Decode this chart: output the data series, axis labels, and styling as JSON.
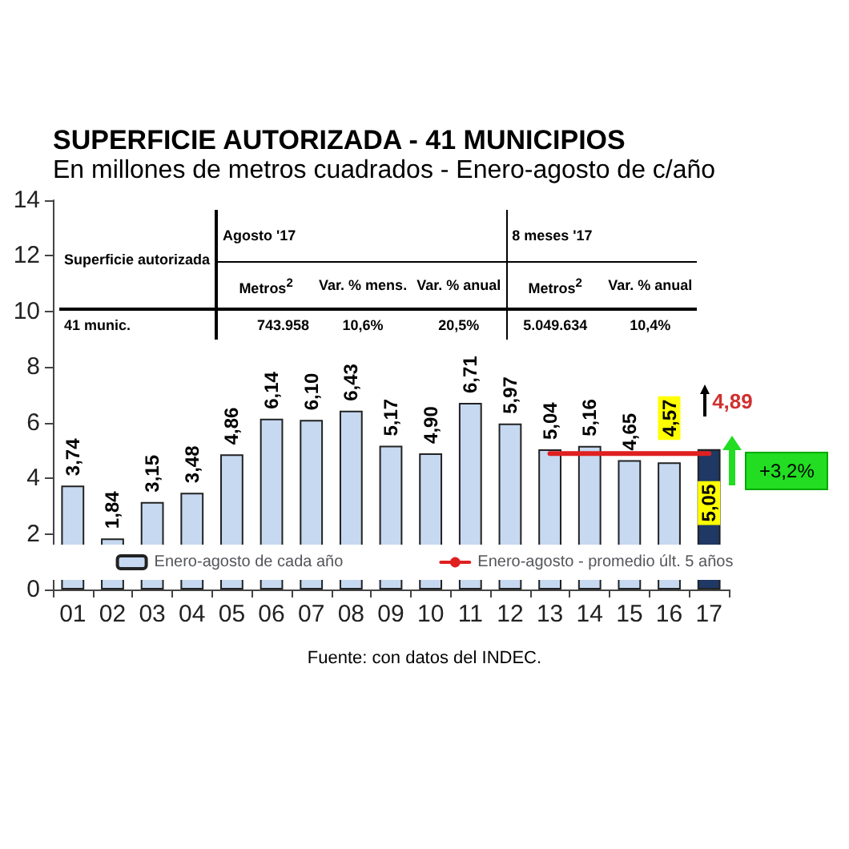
{
  "chart_data": {
    "type": "bar",
    "title": "SUPERFICIE AUTORIZADA - 41 MUNICIPIOS",
    "subtitle": "En millones de metros cuadrados - Enero-agosto de c/año",
    "categories": [
      "01",
      "02",
      "03",
      "04",
      "05",
      "06",
      "07",
      "08",
      "09",
      "10",
      "11",
      "12",
      "13",
      "14",
      "15",
      "16",
      "17"
    ],
    "series": [
      {
        "name": "Enero-agosto de cada año",
        "colors": [
          "#c6d9f1",
          "#c6d9f1",
          "#c6d9f1",
          "#c6d9f1",
          "#c6d9f1",
          "#c6d9f1",
          "#c6d9f1",
          "#c6d9f1",
          "#c6d9f1",
          "#c6d9f1",
          "#c6d9f1",
          "#c6d9f1",
          "#c6d9f1",
          "#c6d9f1",
          "#c6d9f1",
          "#c6d9f1",
          "#1f3864"
        ],
        "values": [
          3.74,
          1.84,
          3.15,
          3.48,
          4.86,
          6.14,
          6.1,
          6.43,
          5.17,
          4.9,
          6.71,
          5.97,
          5.04,
          5.16,
          4.65,
          4.57,
          5.05
        ],
        "value_labels": [
          "3,74",
          "1,84",
          "3,15",
          "3,48",
          "4,86",
          "6,14",
          "6,10",
          "6,43",
          "5,17",
          "4,90",
          "6,71",
          "5,97",
          "5,04",
          "5,16",
          "4,65",
          "4,57",
          "5,05"
        ]
      },
      {
        "name": "Enero-agosto - promedio últ. 5 años",
        "type": "line",
        "color": "#e02020",
        "values": [
          null,
          null,
          null,
          null,
          null,
          null,
          null,
          null,
          null,
          null,
          null,
          null,
          4.89,
          4.89,
          4.89,
          4.89,
          4.89
        ]
      }
    ],
    "ylim": [
      0,
      14
    ],
    "yticks": [
      0,
      2,
      4,
      6,
      8,
      10,
      12,
      14
    ],
    "grid": false,
    "legend": "bottom",
    "marker": "none",
    "annotations": [
      "Fuente: con datos del INDEC.",
      "+3,2%",
      {
        "text": "4,89",
        "x": "17",
        "y": 4.89
      },
      "Superficie autorizada",
      "Agosto '17",
      "8 meses '17",
      "Metros$^{2}$",
      "Var. % mens.",
      "Var. % anual",
      "Metros$^{2}$",
      "Var. % anual",
      "41 munic.",
      "743.958",
      "10,6%",
      "20,5%",
      "5.049.634",
      "10,4%"
    ]
  }
}
